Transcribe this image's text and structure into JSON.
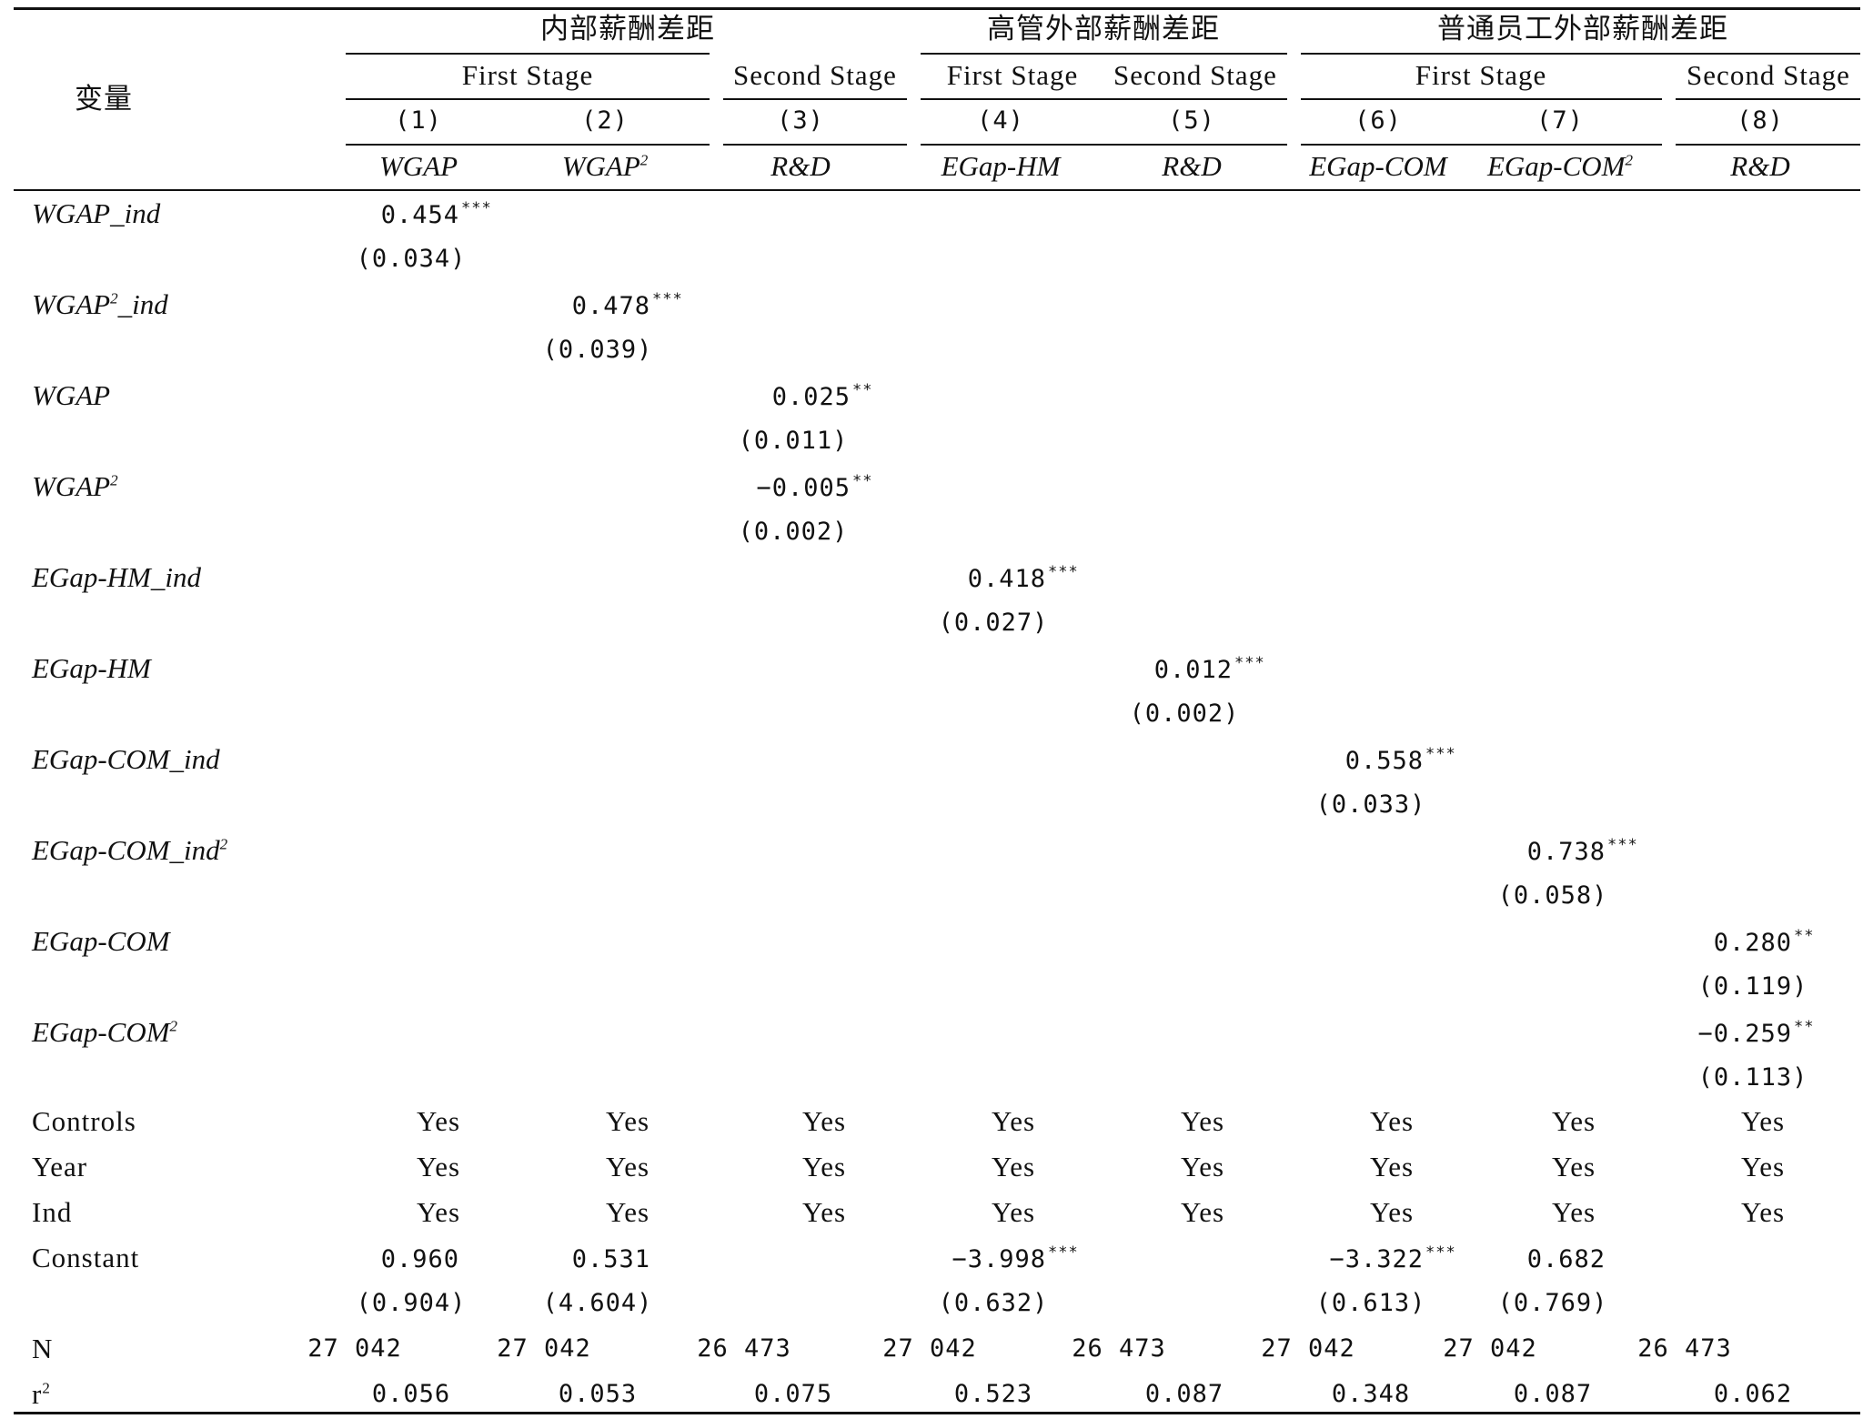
{
  "header": {
    "var_label": "变量",
    "groups": [
      "内部薪酬差距",
      "高管外部薪酬差距",
      "普通员工外部薪酬差距"
    ],
    "stages": [
      "First Stage",
      "Second Stage",
      "First Stage",
      "Second Stage",
      "First Stage",
      "Second Stage"
    ],
    "col_nums": [
      "(1)",
      "(2)",
      "(3)",
      "(4)",
      "(5)",
      "(6)",
      "(7)",
      "(8)"
    ],
    "dep_vars": [
      "WGAP",
      "WGAP",
      "R&D",
      "EGap-HM",
      "R&D",
      "EGap-COM",
      "EGap-COM",
      "R&D"
    ],
    "dep_sup": "2"
  },
  "rows": [
    {
      "label": "WGAP_ind",
      "label_sup": "",
      "col": 1,
      "coef": "0.454",
      "stars": "***",
      "se": "(0.034)"
    },
    {
      "label": "WGAP",
      "label_sup": "2",
      "label_suffix": "_ind",
      "col": 2,
      "coef": "0.478",
      "stars": "***",
      "se": "(0.039)"
    },
    {
      "label": "WGAP",
      "label_sup": "",
      "col": 3,
      "coef": "0.025",
      "stars": "**",
      "se": "(0.011)"
    },
    {
      "label": "WGAP",
      "label_sup": "2",
      "col": 3,
      "coef": "−0.005",
      "stars": "**",
      "se": "(0.002)"
    },
    {
      "label": "EGap-HM_ind",
      "label_sup": "",
      "col": 4,
      "coef": "0.418",
      "stars": "***",
      "se": "(0.027)"
    },
    {
      "label": "EGap-HM",
      "label_sup": "",
      "col": 5,
      "coef": "0.012",
      "stars": "***",
      "se": "(0.002)"
    },
    {
      "label": "EGap-COM_ind",
      "label_sup": "",
      "col": 6,
      "coef": "0.558",
      "stars": "***",
      "se": "(0.033)"
    },
    {
      "label": "EGap-COM_ind",
      "label_sup": "2",
      "col": 7,
      "coef": "0.738",
      "stars": "***",
      "se": "(0.058)"
    },
    {
      "label": "EGap-COM",
      "label_sup": "",
      "col": 8,
      "coef": "0.280",
      "stars": "**",
      "se": "(0.119)"
    },
    {
      "label": "EGap-COM",
      "label_sup": "2",
      "col": 8,
      "coef": "−0.259",
      "stars": "**",
      "se": "(0.113)"
    }
  ],
  "controls": [
    {
      "label": "Controls",
      "values": [
        "Yes",
        "Yes",
        "Yes",
        "Yes",
        "Yes",
        "Yes",
        "Yes",
        "Yes"
      ]
    },
    {
      "label": "Year",
      "values": [
        "Yes",
        "Yes",
        "Yes",
        "Yes",
        "Yes",
        "Yes",
        "Yes",
        "Yes"
      ]
    },
    {
      "label": "Ind",
      "values": [
        "Yes",
        "Yes",
        "Yes",
        "Yes",
        "Yes",
        "Yes",
        "Yes",
        "Yes"
      ]
    }
  ],
  "constant": {
    "label": "Constant",
    "cells": [
      {
        "col": 1,
        "coef": "0.960",
        "stars": "",
        "se": "(0.904)"
      },
      {
        "col": 2,
        "coef": "0.531",
        "stars": "",
        "se": "(4.604)"
      },
      {
        "col": 4,
        "coef": "−3.998",
        "stars": "***",
        "se": "(0.632)"
      },
      {
        "col": 6,
        "coef": "−3.322",
        "stars": "***",
        "se": "(0.613)"
      },
      {
        "col": 7,
        "coef": "0.682",
        "stars": "",
        "se": "(0.769)"
      }
    ]
  },
  "n_row": {
    "label": "N",
    "values": [
      "27 042",
      "27 042",
      "26 473",
      "27 042",
      "26 473",
      "27 042",
      "27 042",
      "26 473"
    ]
  },
  "r2_row": {
    "label": "r",
    "label_sup": "2",
    "values": [
      "0.056",
      "0.053",
      "0.075",
      "0.523",
      "0.087",
      "0.348",
      "0.087",
      "0.062"
    ]
  }
}
